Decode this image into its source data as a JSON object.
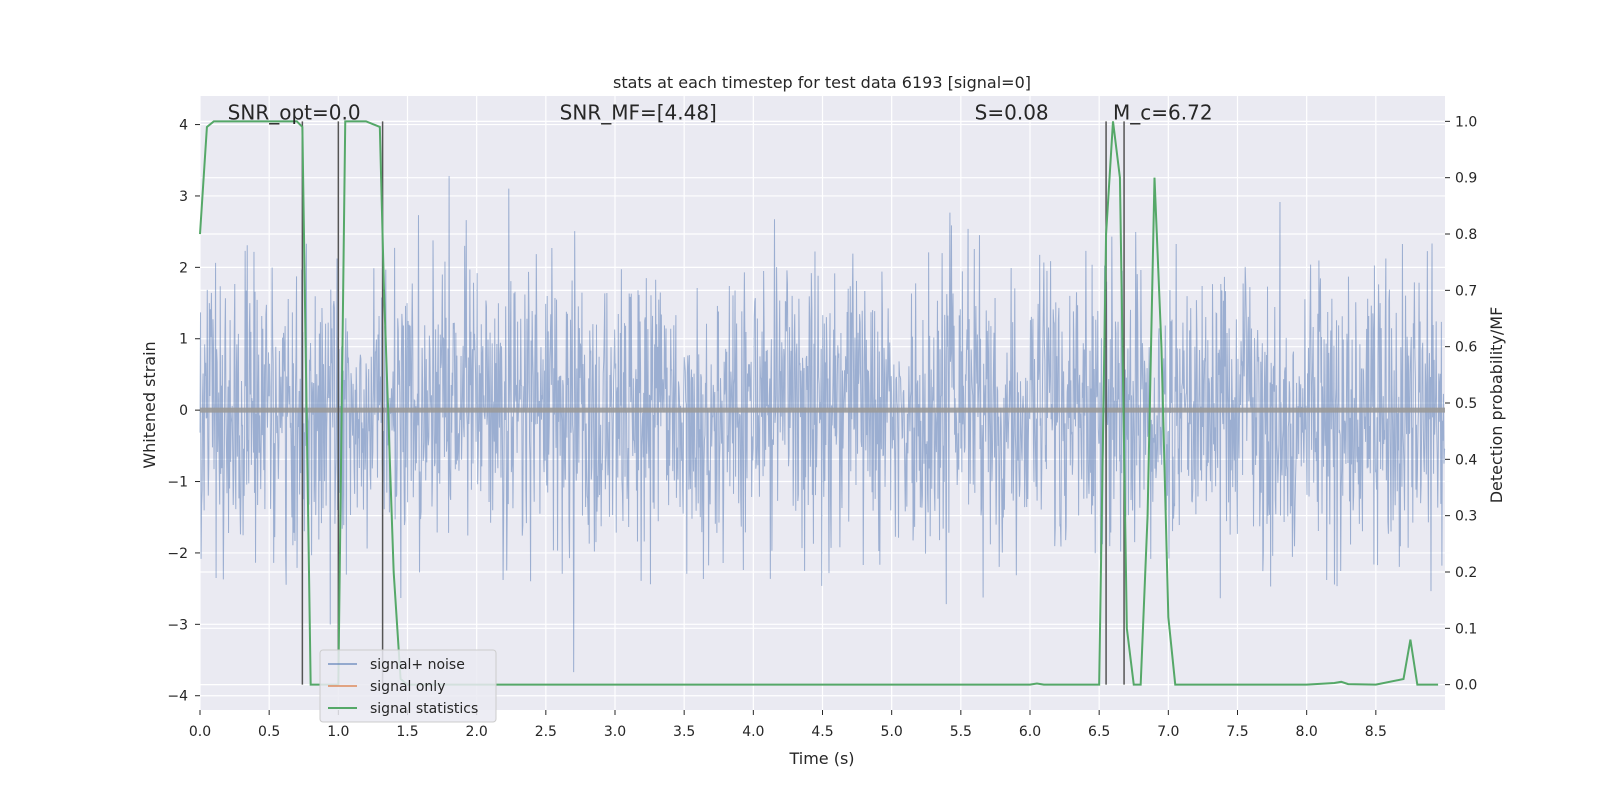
{
  "chart_data": {
    "type": "line",
    "title": "stats at each timestep for test data 6193 [signal=0]",
    "xlabel": "Time (s)",
    "ylabel": "Whitened strain",
    "ylabel_right": "Detection probability/MF",
    "xlim": [
      0,
      9
    ],
    "ylim": [
      -4.2,
      4.4
    ],
    "ylim_right": [
      -0.045,
      1.045
    ],
    "x_ticks": [
      0.0,
      0.5,
      1.0,
      1.5,
      2.0,
      2.5,
      3.0,
      3.5,
      4.0,
      4.5,
      5.0,
      5.5,
      6.0,
      6.5,
      7.0,
      7.5,
      8.0,
      8.5
    ],
    "y_ticks": [
      -4,
      -3,
      -2,
      -1,
      0,
      1,
      2,
      3,
      4
    ],
    "y_ticks_right": [
      0.0,
      0.1,
      0.2,
      0.3,
      0.4,
      0.5,
      0.6,
      0.7,
      0.8,
      0.9,
      1.0
    ],
    "grid": true,
    "legend_position": "lower-left",
    "annotations": [
      {
        "text": "SNR_opt=0.0",
        "x": 0.2,
        "y": 4.1
      },
      {
        "text": "SNR_MF=[4.48]",
        "x": 2.6,
        "y": 4.1
      },
      {
        "text": "S=0.08",
        "x": 5.6,
        "y": 4.1
      },
      {
        "text": "M_c=6.72",
        "x": 6.6,
        "y": 4.1
      }
    ],
    "series": [
      {
        "name": "signal+ noise",
        "color": "#4c72b0",
        "kind": "noise",
        "note_amplitude_std": 1.0,
        "dense_samples_over_range": true
      },
      {
        "name": "signal only",
        "color": "#dd8452",
        "x": [
          0,
          9
        ],
        "y": [
          0,
          0
        ]
      },
      {
        "name": "signal statistics",
        "color": "#55a868",
        "axis": "right",
        "x": [
          0.0,
          0.05,
          0.1,
          0.3,
          0.5,
          0.7,
          0.74,
          0.8,
          0.85,
          0.95,
          1.0,
          1.05,
          1.1,
          1.2,
          1.3,
          1.33,
          1.4,
          1.45,
          1.5,
          2.0,
          3.0,
          4.0,
          5.0,
          6.0,
          6.05,
          6.1,
          6.5,
          6.55,
          6.6,
          6.65,
          6.7,
          6.75,
          6.8,
          6.85,
          6.9,
          6.95,
          7.0,
          7.05,
          7.1,
          7.5,
          8.0,
          8.2,
          8.25,
          8.3,
          8.5,
          8.7,
          8.75,
          8.8,
          8.85,
          8.9,
          8.95
        ],
        "y": [
          0.8,
          0.99,
          1.0,
          1.0,
          1.0,
          1.0,
          0.99,
          0.0,
          0.0,
          0.0,
          0.0,
          1.0,
          1.0,
          1.0,
          0.99,
          0.7,
          0.2,
          0.01,
          0.0,
          0.0,
          0.0,
          0.0,
          0.0,
          0.0,
          0.002,
          0.0,
          0.0,
          0.8,
          1.0,
          0.9,
          0.1,
          0.0,
          0.0,
          0.3,
          0.9,
          0.6,
          0.12,
          0.0,
          0.0,
          0.0,
          0.0,
          0.003,
          0.005,
          0.001,
          0.0,
          0.01,
          0.08,
          0.0,
          0.0,
          0.0,
          0.0
        ]
      }
    ],
    "vertical_markers": [
      0.74,
      1.0,
      1.32,
      6.55,
      6.68
    ]
  }
}
